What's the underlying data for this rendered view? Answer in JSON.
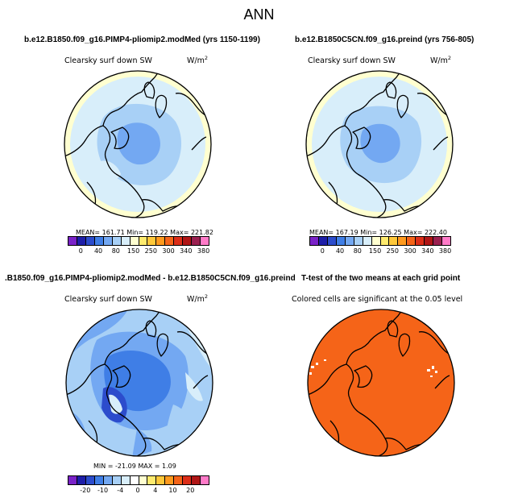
{
  "title": "ANN",
  "panels": [
    {
      "title": "b.e12.B1850.f09_g16.PIMP4-pliomip2.modMed (yrs 1150-1199)",
      "variable": "Clearsky surf down SW",
      "units": "W/m",
      "units_sup": "2",
      "stats": "MEAN= 161.71   Min= 119.22   Max= 221.82",
      "colorbar_labels": [
        "0",
        "40",
        "80",
        "150",
        "250",
        "300",
        "340",
        "380"
      ],
      "colorbar_colors": [
        "#7a22c8",
        "#1e1ea8",
        "#2c4ccc",
        "#3f7ee6",
        "#73a8f2",
        "#a8d0f6",
        "#d8eefa",
        "#ffffd0",
        "#ffeb6e",
        "#ffc83a",
        "#ff9a1e",
        "#f56418",
        "#dc2e18",
        "#b01616",
        "#9a2050",
        "#ff7ac8"
      ]
    },
    {
      "title": "b.e12.B1850C5CN.f09_g16.preind (yrs 756-805)",
      "variable": "Clearsky surf down SW",
      "units": "W/m",
      "units_sup": "2",
      "stats": "MEAN= 167.19   Min= 126.25   Max= 222.40",
      "colorbar_labels": [
        "0",
        "40",
        "80",
        "150",
        "250",
        "300",
        "340",
        "380"
      ],
      "colorbar_colors": [
        "#7a22c8",
        "#1e1ea8",
        "#2c4ccc",
        "#3f7ee6",
        "#73a8f2",
        "#a8d0f6",
        "#d8eefa",
        "#ffffd0",
        "#ffeb6e",
        "#ffc83a",
        "#ff9a1e",
        "#f56418",
        "#dc2e18",
        "#b01616",
        "#9a2050",
        "#ff7ac8"
      ]
    },
    {
      "title": ".B1850.f09_g16.PIMP4-pliomip2.modMed - b.e12.B1850C5CN.f09_g16.preind",
      "variable": "Clearsky surf down SW",
      "units": "W/m",
      "units_sup": "2",
      "stats": "MIN = -21.09 MAX =    1.09",
      "colorbar_labels": [
        "-20",
        "-10",
        "-4",
        "0",
        "4",
        "10",
        "20"
      ],
      "colorbar_colors": [
        "#7a22c8",
        "#1e1ea8",
        "#2c4ccc",
        "#3f7ee6",
        "#73a8f2",
        "#a8d0f6",
        "#d8eefa",
        "#ffffff",
        "#ffffd0",
        "#ffeb6e",
        "#ffc83a",
        "#ff9a1e",
        "#f56418",
        "#dc2e18",
        "#b01616",
        "#ff7ac8"
      ]
    },
    {
      "title": "T-test of the two means at each grid point",
      "variable": "Colored cells are significant at the 0.05 level"
    }
  ],
  "colors": {
    "ocean_light": "#d8eefa",
    "ice_blue": "#a8d0f6",
    "deep_blue": "#73a8f2",
    "diff_blue": "#3f7ee6",
    "significant": "#f56418",
    "yellow": "#ffffd0"
  }
}
